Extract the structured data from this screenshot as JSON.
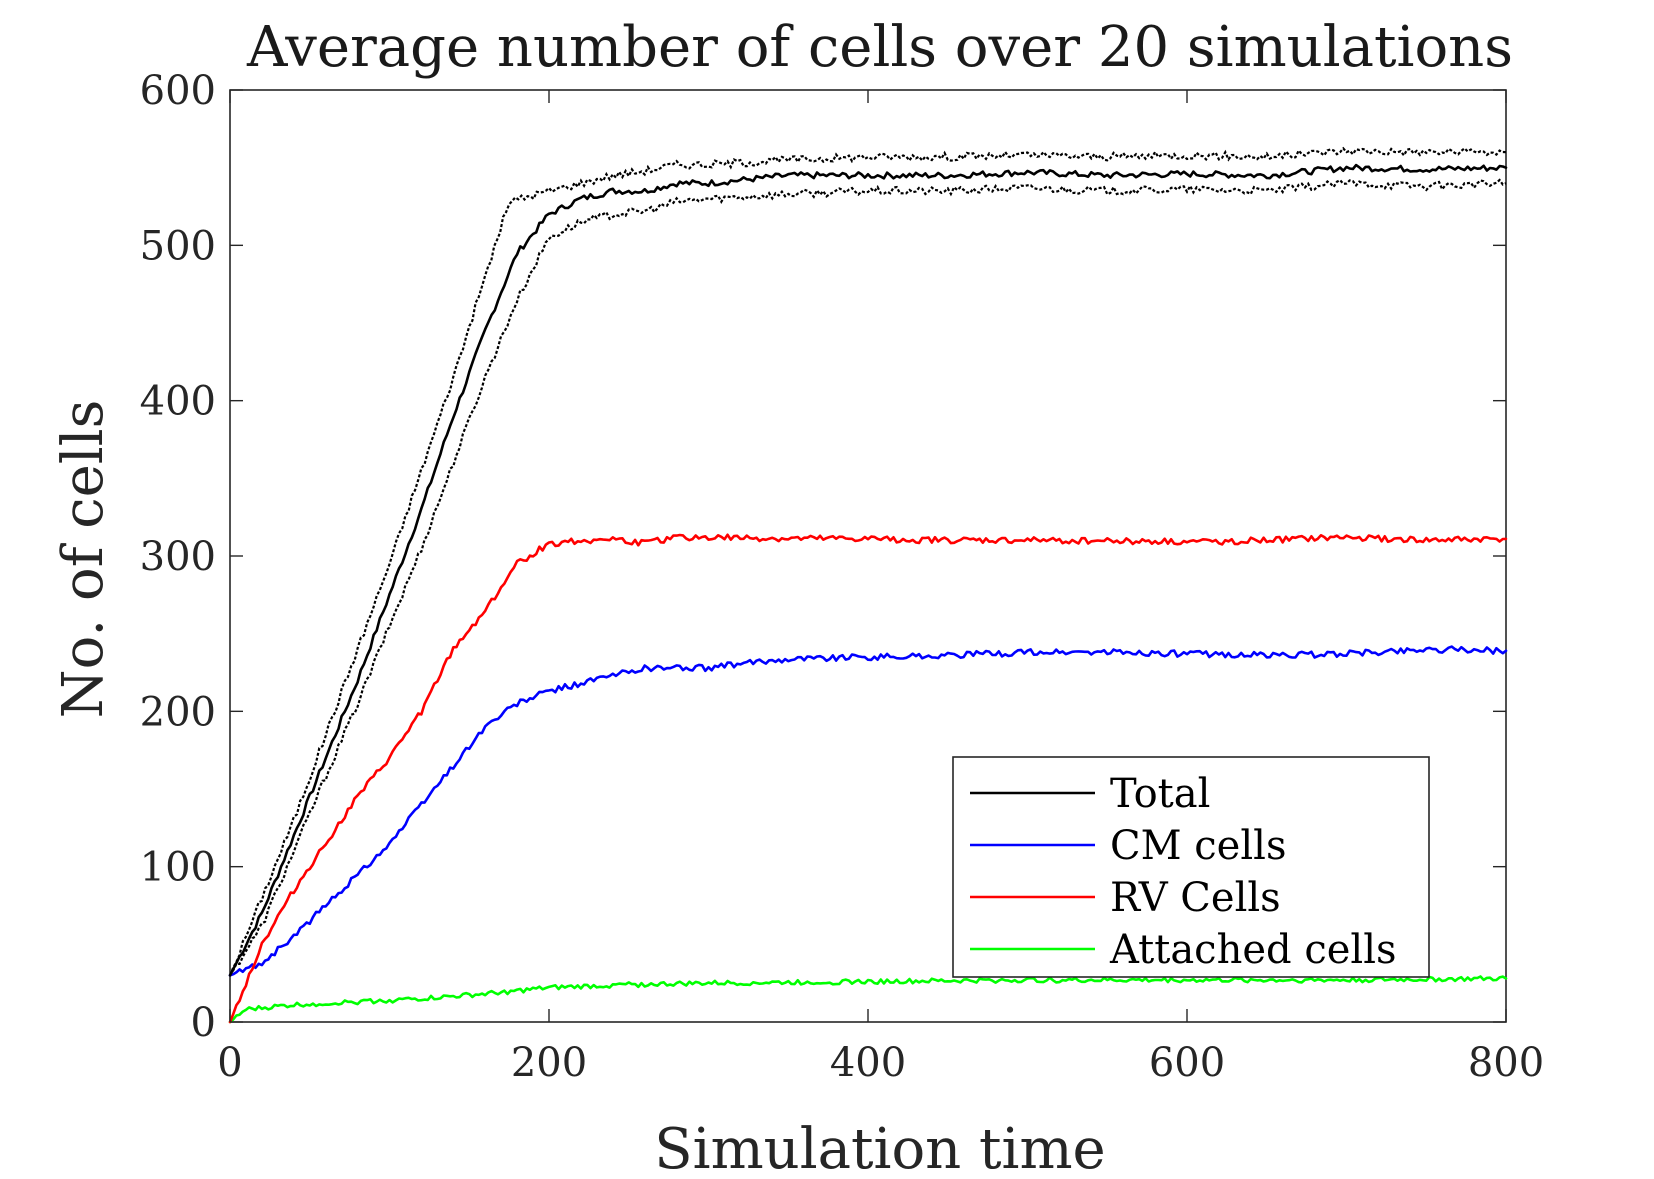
{
  "chart_data": {
    "type": "line",
    "title": "Average number of cells over 20 simulations",
    "xlabel": "Simulation time",
    "ylabel": "No. of cells",
    "xlim": [
      0,
      800
    ],
    "ylim": [
      0,
      600
    ],
    "xticks": [
      0,
      200,
      400,
      600,
      800
    ],
    "yticks": [
      0,
      100,
      200,
      300,
      400,
      500,
      600
    ],
    "grid": false,
    "legend_position": "bottom-right",
    "series": [
      {
        "name": "Total",
        "color": "#000000",
        "x": [
          0,
          20,
          40,
          60,
          80,
          100,
          120,
          140,
          160,
          180,
          200,
          220,
          240,
          260,
          280,
          300,
          350,
          400,
          450,
          500,
          550,
          600,
          650,
          700,
          750,
          800
        ],
        "y": [
          30,
          70,
          120,
          170,
          220,
          275,
          330,
          390,
          445,
          495,
          520,
          530,
          535,
          535,
          540,
          540,
          545,
          545,
          545,
          547,
          545,
          546,
          545,
          550,
          549,
          550
        ]
      },
      {
        "name": "CM cells",
        "color": "#0000ff",
        "x": [
          0,
          20,
          40,
          60,
          80,
          100,
          120,
          140,
          160,
          180,
          200,
          220,
          240,
          260,
          280,
          300,
          350,
          400,
          450,
          500,
          550,
          600,
          650,
          700,
          750,
          800
        ],
        "y": [
          30,
          38,
          55,
          75,
          95,
          115,
          140,
          165,
          190,
          205,
          213,
          218,
          223,
          228,
          228,
          228,
          234,
          235,
          236,
          238,
          238,
          237,
          236,
          237,
          240,
          239
        ]
      },
      {
        "name": "RV Cells",
        "color": "#ff0000",
        "x": [
          0,
          20,
          40,
          60,
          80,
          100,
          120,
          140,
          160,
          180,
          200,
          220,
          240,
          260,
          280,
          300,
          350,
          400,
          450,
          500,
          550,
          600,
          650,
          700,
          750,
          800
        ],
        "y": [
          0,
          50,
          85,
          115,
          145,
          170,
          200,
          240,
          265,
          295,
          308,
          310,
          311,
          308,
          312,
          312,
          311,
          311,
          310,
          310,
          310,
          309,
          310,
          312,
          310,
          311
        ]
      },
      {
        "name": "Attached cells",
        "color": "#00ff00",
        "x": [
          0,
          10,
          40,
          80,
          120,
          160,
          200,
          250,
          300,
          400,
          500,
          600,
          700,
          800
        ],
        "y": [
          0,
          8,
          11,
          13,
          15,
          18,
          22,
          24,
          25,
          26,
          27,
          27,
          27,
          28
        ]
      }
    ],
    "bands": [
      {
        "of": "Total",
        "color": "#000000",
        "x": [
          0,
          20,
          40,
          60,
          80,
          100,
          120,
          140,
          160,
          175,
          200,
          220,
          240,
          260,
          280,
          300,
          350,
          400,
          450,
          500,
          550,
          600,
          650,
          700,
          750,
          800
        ],
        "y": [
          30,
          80,
          130,
          185,
          240,
          295,
          355,
          415,
          480,
          528,
          535,
          540,
          545,
          548,
          552,
          552,
          555,
          557,
          557,
          558,
          557,
          558,
          557,
          561,
          560,
          560
        ]
      },
      {
        "of": "Total",
        "color": "#000000",
        "x": [
          0,
          20,
          40,
          60,
          80,
          100,
          120,
          140,
          160,
          180,
          200,
          220,
          240,
          260,
          280,
          300,
          350,
          400,
          450,
          500,
          550,
          600,
          650,
          700,
          750,
          800
        ],
        "y": [
          30,
          62,
          110,
          158,
          205,
          255,
          305,
          360,
          415,
          465,
          505,
          515,
          520,
          522,
          528,
          530,
          533,
          535,
          535,
          537,
          535,
          536,
          535,
          540,
          538,
          540
        ]
      }
    ]
  }
}
